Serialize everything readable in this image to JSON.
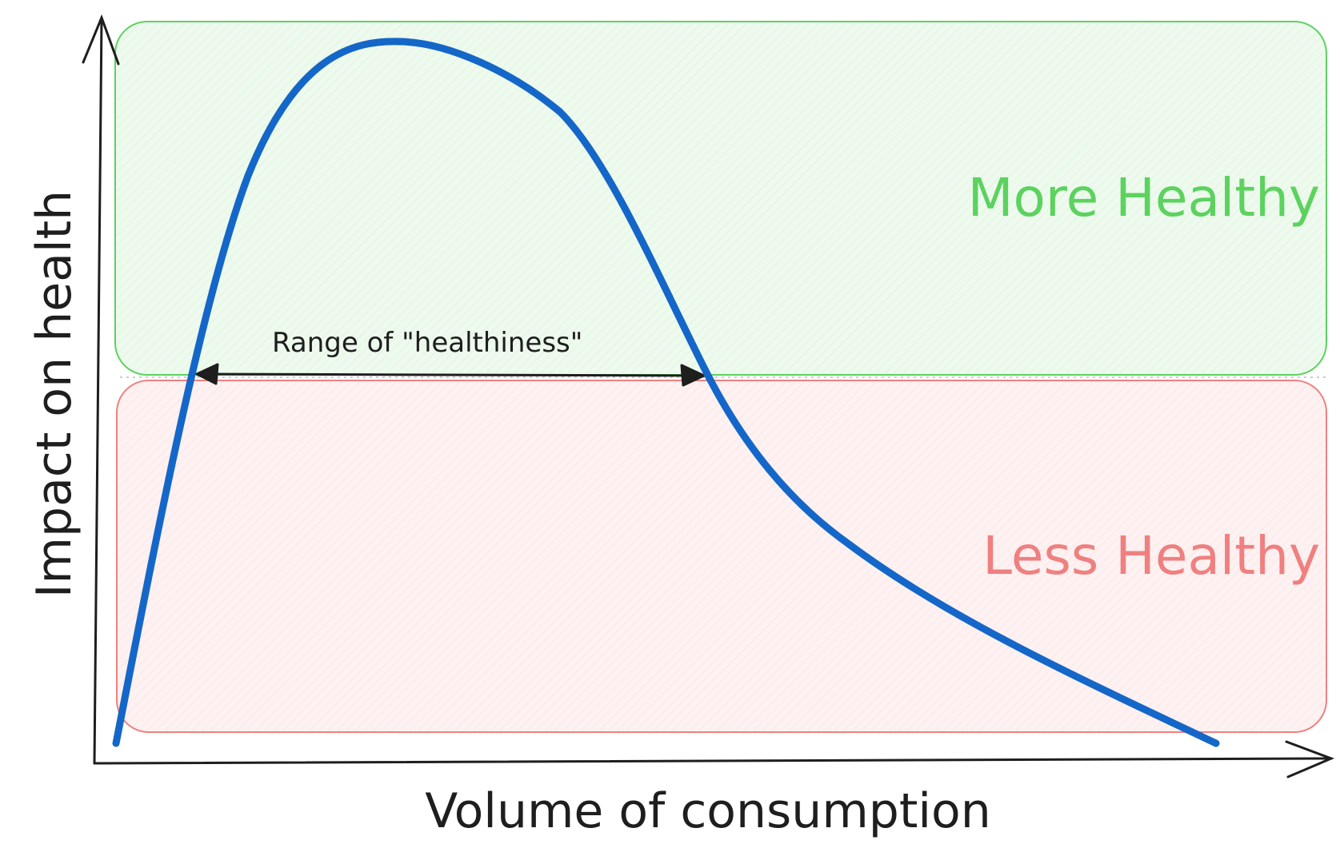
{
  "axes": {
    "x_label": "Volume of consumption",
    "y_label": "Impact on health"
  },
  "regions": {
    "healthy": {
      "label": "More Healthy",
      "color": "#5cd25f",
      "fill": "#e9f9e8"
    },
    "unhealthy": {
      "label": "Less Healthy",
      "color": "#f08080",
      "fill": "#fdeeee"
    }
  },
  "range": {
    "label": "Range of \"healthiness\""
  },
  "curve": {
    "color": "#1467c8"
  },
  "ink_color": "#1e1e1e"
}
